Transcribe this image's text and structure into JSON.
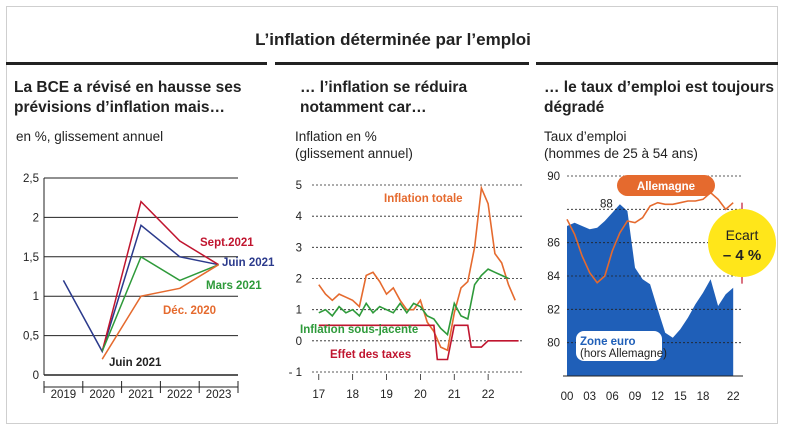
{
  "title": "L’inflation déterminée par l’emploi",
  "colors": {
    "dark_red": "#c0152f",
    "orange": "#e56a2e",
    "green": "#2e9a3a",
    "navy": "#2b3a8c",
    "black": "#222222",
    "blue": "#1f5fb8",
    "yellow": "#ffe61a"
  },
  "chart_data": [
    {
      "type": "line",
      "title": "La BCE a révisé en hausse ses prévisions d’inflation mais…",
      "subtitle": "en %, glissement annuel",
      "categories": [
        "2019",
        "2020",
        "2021",
        "2022",
        "2023"
      ],
      "y_ticks": [
        "0",
        "0,5",
        "1",
        "1,5",
        "2",
        "2,5"
      ],
      "ylim": [
        0,
        2.5
      ],
      "series": [
        {
          "name": "Juin 2021",
          "values": [
            1.2,
            0.3,
            1.9,
            1.5,
            1.4
          ],
          "color": "#2b3a8c"
        },
        {
          "name": "Sept.2021",
          "values": [
            null,
            0.3,
            2.2,
            1.7,
            1.4
          ],
          "color": "#c0152f"
        },
        {
          "name": "Mars 2021",
          "values": [
            null,
            0.3,
            1.5,
            1.2,
            1.4
          ],
          "color": "#2e9a3a"
        },
        {
          "name": "Déc. 2020",
          "values": [
            null,
            0.2,
            1.0,
            1.1,
            1.4
          ],
          "color": "#e56a2e"
        }
      ],
      "annotations": [
        "Juin 2021"
      ]
    },
    {
      "type": "line",
      "title": "… l’inflation se réduira notamment car…",
      "subtitle": "Inflation en %\n(glissement annuel)",
      "x_ticks": [
        "17",
        "18",
        "19",
        "20",
        "21",
        "22"
      ],
      "y_ticks": [
        "5",
        "4",
        "3",
        "2",
        "1",
        "0",
        "- 1"
      ],
      "ylim": [
        -1,
        5
      ],
      "xlim": [
        2016.8,
        2023.0
      ],
      "series": [
        {
          "name": "Inflation totale",
          "color": "#e56a2e",
          "x": [
            2017.0,
            2017.2,
            2017.4,
            2017.6,
            2017.8,
            2018.0,
            2018.2,
            2018.4,
            2018.6,
            2018.8,
            2019.0,
            2019.2,
            2019.4,
            2019.6,
            2019.8,
            2020.0,
            2020.2,
            2020.4,
            2020.6,
            2020.8,
            2021.0,
            2021.2,
            2021.4,
            2021.6,
            2021.8,
            2022.0,
            2022.2,
            2022.4,
            2022.6,
            2022.8
          ],
          "y": [
            1.8,
            1.5,
            1.3,
            1.5,
            1.4,
            1.3,
            1.1,
            2.1,
            2.2,
            1.9,
            1.5,
            1.7,
            1.3,
            1.0,
            1.0,
            1.3,
            0.6,
            0.3,
            -0.2,
            -0.3,
            0.9,
            1.7,
            1.9,
            3.0,
            4.9,
            4.4,
            2.8,
            2.5,
            1.8,
            1.3
          ]
        },
        {
          "name": "Inflation sous-jacente",
          "color": "#2e9a3a",
          "x": [
            2017.0,
            2017.2,
            2017.4,
            2017.6,
            2017.8,
            2018.0,
            2018.2,
            2018.4,
            2018.6,
            2018.8,
            2019.0,
            2019.2,
            2019.4,
            2019.6,
            2019.8,
            2020.0,
            2020.2,
            2020.4,
            2020.6,
            2020.8,
            2021.0,
            2021.2,
            2021.4,
            2021.6,
            2021.8,
            2022.0,
            2022.2,
            2022.4,
            2022.6
          ],
          "y": [
            0.9,
            1.0,
            0.8,
            1.1,
            0.9,
            1.0,
            0.8,
            1.2,
            0.9,
            1.1,
            1.0,
            0.9,
            1.2,
            0.9,
            1.2,
            1.1,
            0.8,
            0.7,
            0.4,
            0.2,
            1.2,
            0.8,
            0.7,
            1.8,
            2.1,
            2.3,
            2.2,
            2.1,
            2.0
          ]
        },
        {
          "name": "Effet des taxes",
          "color": "#c0152f",
          "x": [
            2017.0,
            2017.5,
            2018.0,
            2018.5,
            2019.0,
            2019.5,
            2020.0,
            2020.4,
            2020.5,
            2020.8,
            2021.0,
            2021.4,
            2021.5,
            2021.8,
            2022.0,
            2022.5,
            2022.9
          ],
          "y": [
            0.5,
            0.5,
            0.5,
            0.5,
            0.5,
            0.5,
            0.5,
            0.5,
            -0.6,
            -0.6,
            0.5,
            0.5,
            -0.2,
            -0.2,
            0.0,
            0.0,
            0.0
          ]
        }
      ]
    },
    {
      "type": "area",
      "title": "… le taux d’emploi est toujours dégradé",
      "subtitle": "Taux d’emploi\n(hommes de 25 à 54 ans)",
      "x_ticks": [
        "00",
        "03",
        "06",
        "09",
        "12",
        "15",
        "18",
        "22"
      ],
      "y_ticks": [
        "90",
        "88",
        "86",
        "84",
        "82",
        "80"
      ],
      "ylim": [
        78,
        90
      ],
      "series": [
        {
          "name": "Zone euro",
          "note": "(hors Allemagne)",
          "color": "#1f5fb8",
          "x": [
            2000,
            2001,
            2002,
            2003,
            2004,
            2005,
            2006,
            2007,
            2008,
            2009,
            2010,
            2011,
            2012,
            2013,
            2014,
            2015,
            2016,
            2017,
            2018,
            2019,
            2020,
            2021,
            2022
          ],
          "y": [
            87,
            87.2,
            87,
            86.8,
            86.9,
            87.3,
            87.8,
            88.3,
            87.9,
            84.5,
            83.8,
            83.5,
            82.0,
            80.6,
            80.3,
            80.8,
            81.5,
            82.3,
            83.0,
            83.8,
            82.2,
            82.9,
            83.3
          ]
        },
        {
          "name": "Allemagne",
          "color": "#e56a2e",
          "x": [
            2000,
            2001,
            2002,
            2003,
            2004,
            2005,
            2006,
            2007,
            2008,
            2009,
            2010,
            2011,
            2012,
            2013,
            2014,
            2015,
            2016,
            2017,
            2018,
            2019,
            2020,
            2021,
            2022
          ],
          "y": [
            87.4,
            86.5,
            85.2,
            84.2,
            83.6,
            84.0,
            85.5,
            86.6,
            87.3,
            87.2,
            87.5,
            88.2,
            88.4,
            88.3,
            88.3,
            88.4,
            88.5,
            88.5,
            88.6,
            89.0,
            88.6,
            88.0,
            88.4
          ]
        }
      ],
      "annotations": [
        "88"
      ],
      "gap_label": {
        "title": "Ecart",
        "value": "– 4 %"
      }
    }
  ]
}
